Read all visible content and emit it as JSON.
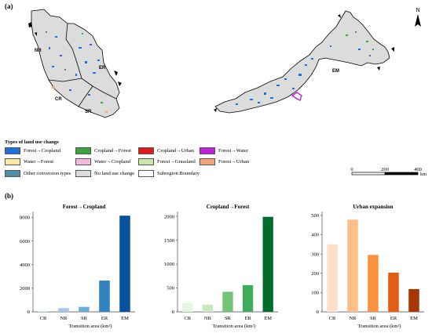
{
  "panels": {
    "a_label": "(a)",
    "b_label": "(b)"
  },
  "map": {
    "north_label": "N",
    "region_labels": {
      "nr": "NR",
      "er": "ER",
      "cr": "CR",
      "sr": "SR",
      "em": "EM"
    },
    "scale_bar": {
      "ticks": [
        "0",
        "200",
        "400"
      ],
      "unit": "km"
    },
    "colors": {
      "land": "#dcdcdc",
      "boundary": "#000000",
      "forest_cropland": "#1f6fe0",
      "cropland_forest": "#3aa63a",
      "cropland_urban": "#e0302a",
      "forest_water": "#c21fe0"
    }
  },
  "legend": {
    "title": "Types of land use change",
    "items": [
      {
        "label": "Forest→Cropland",
        "color": "#1f6fe0"
      },
      {
        "label": "Cropland→Forest",
        "color": "#3aa63a"
      },
      {
        "label": "Cropland→Urban",
        "color": "#e31a1c"
      },
      {
        "label": "Forest→Water",
        "color": "#c21fe0"
      },
      {
        "label": "Water→Forest",
        "color": "#fde9a6"
      },
      {
        "label": "Water→Cropland",
        "color": "#f5b8dc"
      },
      {
        "label": "Forest→Grassland",
        "color": "#cbe8a8"
      },
      {
        "label": "Forest→Urban",
        "color": "#f4a57a"
      },
      {
        "label": "Other conversion types",
        "color": "#4f8fa8"
      },
      {
        "label": "No land use change",
        "color": "#dcdcdc"
      },
      {
        "label": "Subregion Boundary",
        "color": "#ffffff"
      }
    ]
  },
  "chart_data": [
    {
      "type": "bar",
      "title": "Forest→Cropland",
      "categories": [
        "CR",
        "NR",
        "SR",
        "ER",
        "EM"
      ],
      "values": [
        50,
        310,
        420,
        2650,
        8150
      ],
      "colors": [
        "#c6dbef",
        "#9ecae1",
        "#6baed6",
        "#3182bd",
        "#08519c"
      ],
      "ylim": [
        0,
        8500
      ],
      "yticks": [
        0,
        2000,
        4000,
        6000,
        8000
      ],
      "xlabel": "Transition area (km²)"
    },
    {
      "type": "bar",
      "title": "Cropland→Forest",
      "categories": [
        "CR",
        "NR",
        "SR",
        "ER",
        "EM"
      ],
      "values": [
        180,
        150,
        420,
        560,
        1990
      ],
      "colors": [
        "#e5f5e0",
        "#c7e9c0",
        "#74c476",
        "#41ab5d",
        "#006d2c"
      ],
      "ylim": [
        0,
        2100
      ],
      "yticks": [
        0,
        500,
        1000,
        1500,
        2000
      ],
      "xlabel": "Transition area (km²)"
    },
    {
      "type": "bar",
      "title": "Urban expansion",
      "categories": [
        "CR",
        "NR",
        "SR",
        "ER",
        "EM"
      ],
      "values": [
        350,
        478,
        295,
        203,
        118
      ],
      "colors": [
        "#fde0c8",
        "#fdbf8a",
        "#f9913f",
        "#e25d17",
        "#a63603"
      ],
      "ylim": [
        0,
        520
      ],
      "yticks": [
        0,
        100,
        200,
        300,
        400,
        500
      ],
      "xlabel": "Transition area (km²)"
    }
  ]
}
